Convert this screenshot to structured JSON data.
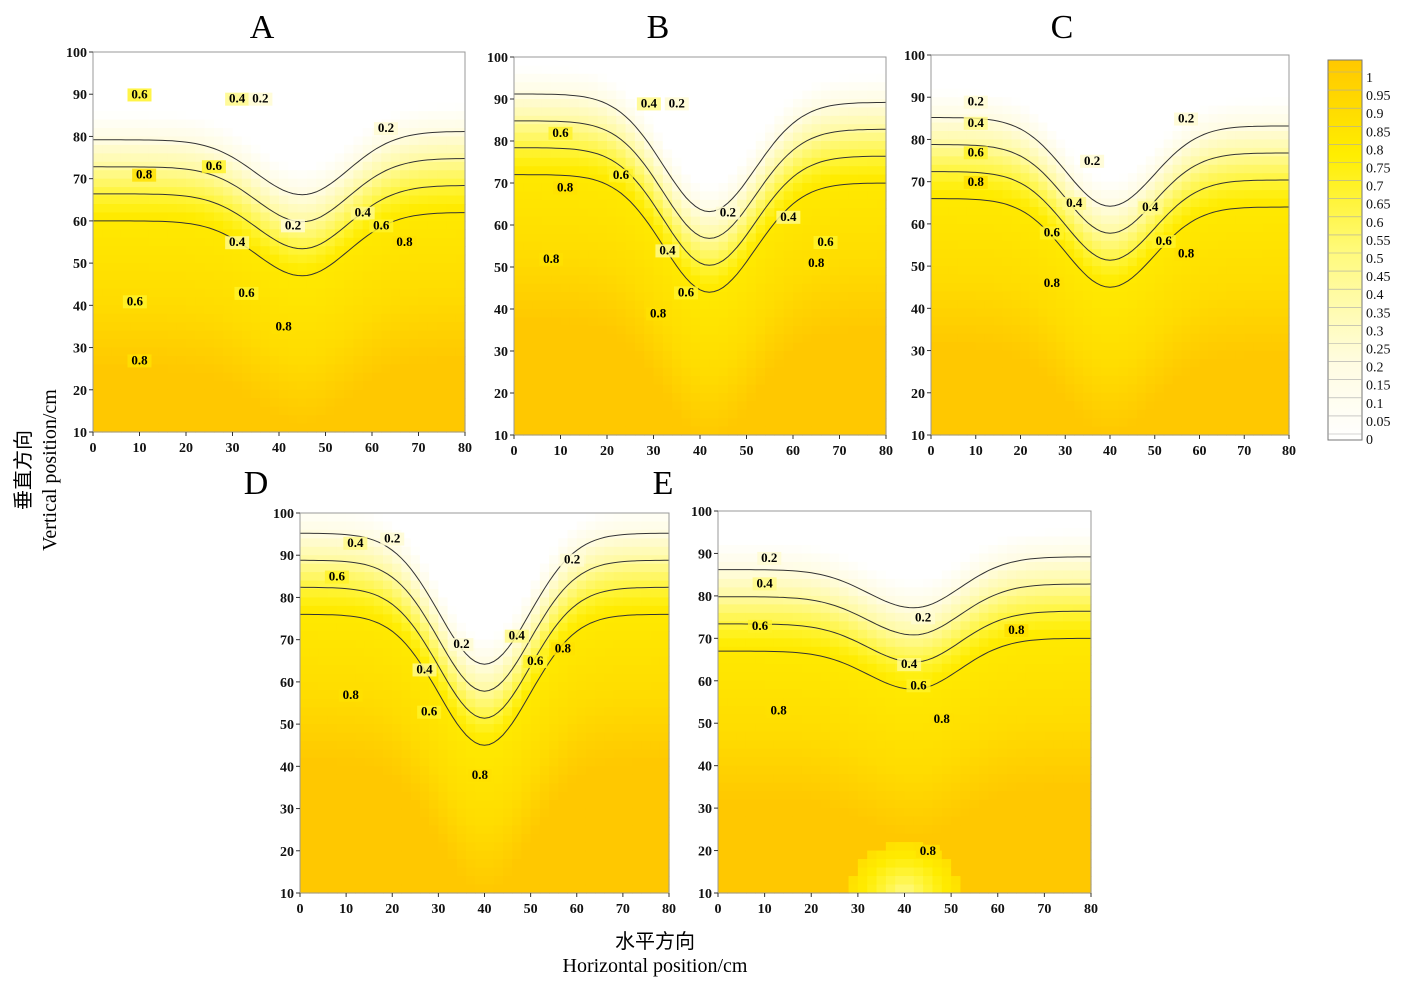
{
  "figure": {
    "y_axis_title_cn": "垂直方向",
    "y_axis_title_en": "Vertical position/cm",
    "x_axis_title_cn": "水平方向",
    "x_axis_title_en": "Horizontal position/cm"
  },
  "colorbar": {
    "labels": [
      "1",
      "0.95",
      "0.9",
      "0.85",
      "0.8",
      "0.75",
      "0.7",
      "0.65",
      "0.6",
      "0.55",
      "0.5",
      "0.45",
      "0.4",
      "0.35",
      "0.3",
      "0.25",
      "0.2",
      "0.15",
      "0.1",
      "0.05",
      "0"
    ],
    "low_color": "#FFFFFF",
    "mid_color": "#FFF000",
    "high_color": "#FFC800"
  },
  "chart_data": [
    {
      "type": "heatmap",
      "style": "filled-contour",
      "title": "A",
      "xlim": [
        0,
        80
      ],
      "ylim": [
        10,
        100
      ],
      "xticks": [
        "0",
        "10",
        "20",
        "30",
        "40",
        "50",
        "60",
        "70",
        "80"
      ],
      "yticks": [
        "10",
        "20",
        "30",
        "40",
        "50",
        "60",
        "70",
        "80",
        "90",
        "100"
      ],
      "contour_levels": [
        0.2,
        0.4,
        0.6,
        0.8
      ],
      "contour_labels": [
        {
          "text": "0.6",
          "x": 10,
          "y": 89
        },
        {
          "text": "0.4",
          "x": 31,
          "y": 88
        },
        {
          "text": "0.2",
          "x": 36,
          "y": 88
        },
        {
          "text": "0.2",
          "x": 63,
          "y": 81
        },
        {
          "text": "0.8",
          "x": 11,
          "y": 70
        },
        {
          "text": "0.6",
          "x": 26,
          "y": 72
        },
        {
          "text": "0.4",
          "x": 58,
          "y": 61
        },
        {
          "text": "0.2",
          "x": 43,
          "y": 58
        },
        {
          "text": "0.6",
          "x": 62,
          "y": 58
        },
        {
          "text": "0.8",
          "x": 67,
          "y": 54
        },
        {
          "text": "0.4",
          "x": 31,
          "y": 54
        },
        {
          "text": "0.6",
          "x": 33,
          "y": 42
        },
        {
          "text": "0.6",
          "x": 9,
          "y": 40
        },
        {
          "text": "0.8",
          "x": 41,
          "y": 34
        },
        {
          "text": "0.8",
          "x": 10,
          "y": 26
        }
      ],
      "trough": {
        "x": 45,
        "min_y": 47
      },
      "shelf_left_y": 60,
      "shelf_right_y": 62
    },
    {
      "type": "heatmap",
      "style": "filled-contour",
      "title": "B",
      "xlim": [
        0,
        80
      ],
      "ylim": [
        10,
        100
      ],
      "xticks": [
        "0",
        "10",
        "20",
        "30",
        "40",
        "50",
        "60",
        "70",
        "80"
      ],
      "yticks": [
        "10",
        "20",
        "30",
        "40",
        "50",
        "60",
        "70",
        "80",
        "90",
        "100"
      ],
      "contour_levels": [
        0.2,
        0.4,
        0.6,
        0.8
      ],
      "contour_labels": [
        {
          "text": "0.4",
          "x": 29,
          "y": 88
        },
        {
          "text": "0.2",
          "x": 35,
          "y": 88
        },
        {
          "text": "0.6",
          "x": 10,
          "y": 81
        },
        {
          "text": "0.6",
          "x": 23,
          "y": 71
        },
        {
          "text": "0.8",
          "x": 11,
          "y": 68
        },
        {
          "text": "0.2",
          "x": 46,
          "y": 62
        },
        {
          "text": "0.4",
          "x": 59,
          "y": 61
        },
        {
          "text": "0.6",
          "x": 67,
          "y": 55
        },
        {
          "text": "0.4",
          "x": 33,
          "y": 53
        },
        {
          "text": "0.8",
          "x": 8,
          "y": 51
        },
        {
          "text": "0.8",
          "x": 65,
          "y": 50
        },
        {
          "text": "0.6",
          "x": 37,
          "y": 43
        },
        {
          "text": "0.8",
          "x": 31,
          "y": 38
        }
      ],
      "trough": {
        "x": 42,
        "min_y": 44
      },
      "shelf_left_y": 72,
      "shelf_right_y": 70
    },
    {
      "type": "heatmap",
      "style": "filled-contour",
      "title": "C",
      "xlim": [
        0,
        80
      ],
      "ylim": [
        10,
        100
      ],
      "xticks": [
        "0",
        "10",
        "20",
        "30",
        "40",
        "50",
        "60",
        "70",
        "80"
      ],
      "yticks": [
        "10",
        "20",
        "30",
        "40",
        "50",
        "60",
        "70",
        "80",
        "90",
        "100"
      ],
      "contour_levels": [
        0.2,
        0.4,
        0.6,
        0.8
      ],
      "contour_labels": [
        {
          "text": "0.2",
          "x": 10,
          "y": 88
        },
        {
          "text": "0.2",
          "x": 57,
          "y": 84
        },
        {
          "text": "0.4",
          "x": 10,
          "y": 83
        },
        {
          "text": "0.6",
          "x": 10,
          "y": 76
        },
        {
          "text": "0.2",
          "x": 36,
          "y": 74
        },
        {
          "text": "0.8",
          "x": 10,
          "y": 69
        },
        {
          "text": "0.4",
          "x": 32,
          "y": 64
        },
        {
          "text": "0.4",
          "x": 49,
          "y": 63
        },
        {
          "text": "0.6",
          "x": 27,
          "y": 57
        },
        {
          "text": "0.6",
          "x": 52,
          "y": 55
        },
        {
          "text": "0.8",
          "x": 57,
          "y": 52
        },
        {
          "text": "0.8",
          "x": 27,
          "y": 45
        }
      ],
      "trough": {
        "x": 40,
        "min_y": 45
      },
      "shelf_left_y": 66,
      "shelf_right_y": 64
    },
    {
      "type": "heatmap",
      "style": "filled-contour",
      "title": "D",
      "xlim": [
        0,
        80
      ],
      "ylim": [
        10,
        100
      ],
      "xticks": [
        "0",
        "10",
        "20",
        "30",
        "40",
        "50",
        "60",
        "70",
        "80"
      ],
      "yticks": [
        "10",
        "20",
        "30",
        "40",
        "50",
        "60",
        "70",
        "80",
        "90",
        "100"
      ],
      "contour_levels": [
        0.2,
        0.4,
        0.6,
        0.8
      ],
      "contour_labels": [
        {
          "text": "0.4",
          "x": 12,
          "y": 92
        },
        {
          "text": "0.2",
          "x": 20,
          "y": 93
        },
        {
          "text": "0.2",
          "x": 59,
          "y": 88
        },
        {
          "text": "0.6",
          "x": 8,
          "y": 84
        },
        {
          "text": "0.2",
          "x": 35,
          "y": 68
        },
        {
          "text": "0.4",
          "x": 47,
          "y": 70
        },
        {
          "text": "0.6",
          "x": 51,
          "y": 64
        },
        {
          "text": "0.8",
          "x": 57,
          "y": 67
        },
        {
          "text": "0.4",
          "x": 27,
          "y": 62
        },
        {
          "text": "0.8",
          "x": 11,
          "y": 56
        },
        {
          "text": "0.6",
          "x": 28,
          "y": 52
        },
        {
          "text": "0.8",
          "x": 39,
          "y": 37
        }
      ],
      "trough": {
        "x": 40,
        "min_y": 45
      },
      "shelf_left_y": 76,
      "shelf_right_y": 76
    },
    {
      "type": "heatmap",
      "style": "filled-contour",
      "title": "E",
      "xlim": [
        0,
        80
      ],
      "ylim": [
        10,
        100
      ],
      "xticks": [
        "0",
        "10",
        "20",
        "30",
        "40",
        "50",
        "60",
        "70",
        "80"
      ],
      "yticks": [
        "10",
        "20",
        "30",
        "40",
        "50",
        "60",
        "70",
        "80",
        "90",
        "100"
      ],
      "contour_levels": [
        0.2,
        0.4,
        0.6,
        0.8
      ],
      "contour_labels": [
        {
          "text": "0.2",
          "x": 11,
          "y": 88
        },
        {
          "text": "0.4",
          "x": 10,
          "y": 82
        },
        {
          "text": "0.2",
          "x": 44,
          "y": 74
        },
        {
          "text": "0.6",
          "x": 9,
          "y": 72
        },
        {
          "text": "0.8",
          "x": 64,
          "y": 71
        },
        {
          "text": "0.4",
          "x": 41,
          "y": 63
        },
        {
          "text": "0.6",
          "x": 43,
          "y": 58
        },
        {
          "text": "0.8",
          "x": 13,
          "y": 52
        },
        {
          "text": "0.8",
          "x": 48,
          "y": 50
        },
        {
          "text": "0.8",
          "x": 45,
          "y": 19
        }
      ],
      "trough": {
        "x": 42,
        "min_y": 58
      },
      "shelf_left_y": 67,
      "shelf_right_y": 70,
      "bottom_hole": {
        "x": 40,
        "y": 10
      }
    }
  ]
}
